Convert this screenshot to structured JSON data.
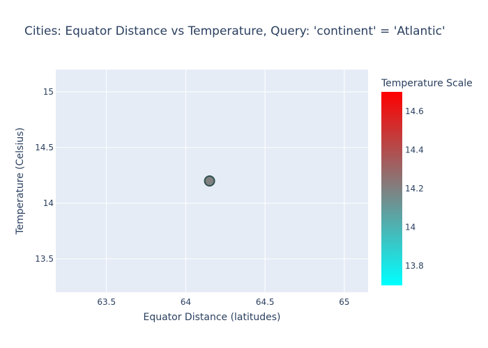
{
  "chart_data": {
    "type": "scatter",
    "title": "Cities: Equator Distance vs Temperature, Query: 'continent' = 'Atlantic'",
    "xlabel": "Equator Distance (latitudes)",
    "ylabel": "Temperature (Celsius)",
    "xlim": [
      63.18,
      65.15
    ],
    "ylim": [
      13.2,
      15.2
    ],
    "x_ticks": [
      63.5,
      64,
      64.5,
      65
    ],
    "x_tick_labels": [
      "63.5",
      "64",
      "64.5",
      "65"
    ],
    "y_ticks": [
      13.5,
      14,
      14.5,
      15
    ],
    "y_tick_labels": [
      "13.5",
      "14",
      "14.5",
      "15"
    ],
    "grid": true,
    "points": [
      {
        "x": 64.15,
        "y": 14.2,
        "color_value": 14.2
      }
    ],
    "point_color": "#808080",
    "point_outline": "#2f4f4f",
    "colorbar": {
      "title": "Temperature Scale",
      "range": [
        13.7,
        14.7
      ],
      "ticks": [
        13.8,
        14,
        14.2,
        14.4,
        14.6
      ],
      "tick_labels": [
        "13.8",
        "14",
        "14.2",
        "14.4",
        "14.6"
      ],
      "colors": [
        "#00ffff",
        "#808080",
        "#ff0000"
      ]
    },
    "plot_bg": "#e5ecf6",
    "grid_color": "#ffffff"
  }
}
